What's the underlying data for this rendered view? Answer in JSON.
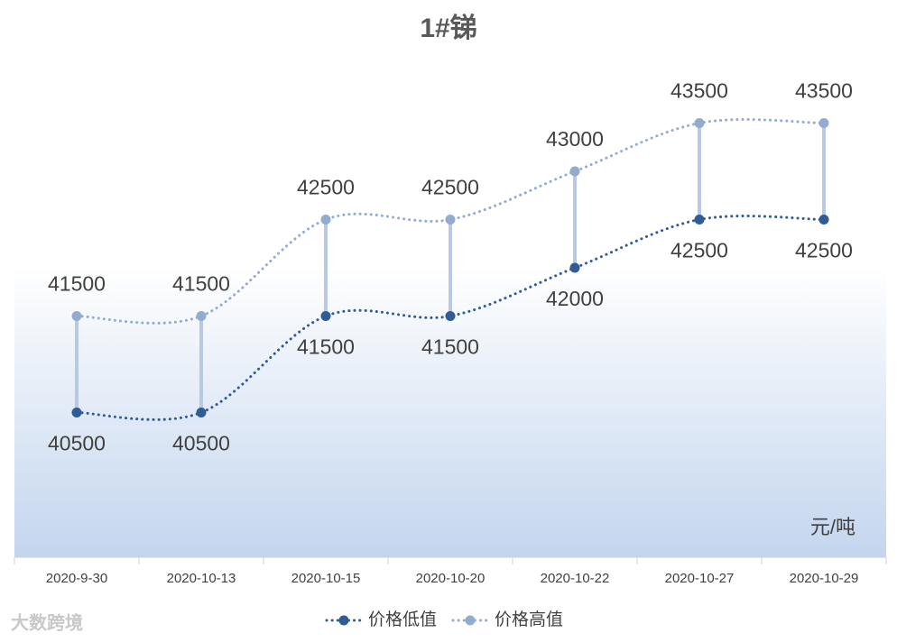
{
  "chart_data": {
    "type": "line",
    "title": "1#锑",
    "unit": "元/吨",
    "watermark": "大数跨境",
    "categories": [
      "2020-9-30",
      "2020-10-13",
      "2020-10-15",
      "2020-10-20",
      "2020-10-22",
      "2020-10-27",
      "2020-10-29"
    ],
    "series": [
      {
        "name": "价格低值",
        "color": "#2f5b96",
        "values": [
          40500,
          40500,
          41500,
          41500,
          42000,
          42500,
          42500
        ]
      },
      {
        "name": "价格高值",
        "color": "#94abd0",
        "values": [
          41500,
          41500,
          42500,
          42500,
          43000,
          43500,
          43500
        ]
      }
    ],
    "ylim": [
      39000,
      44000
    ],
    "hi_lo_lines": true,
    "smooth": true,
    "legend": "bottom"
  }
}
